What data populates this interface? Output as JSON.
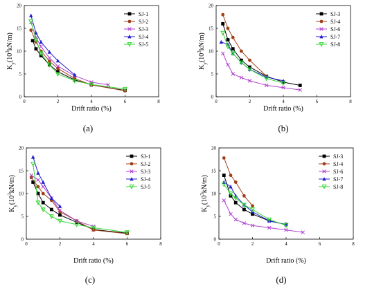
{
  "chart_data": [
    {
      "type": "line",
      "panel_label": "(a)",
      "xlabel": "Drift ratio (%)",
      "ylabel": "K",
      "ylabel_sub": "y",
      "ylabel_rest": "(10",
      "ylabel_sup": "3",
      "ylabel_end": "kN/m)",
      "xlim": [
        0,
        8
      ],
      "ylim": [
        0,
        20
      ],
      "xticks": [
        "0",
        "2",
        "4",
        "6",
        "8"
      ],
      "yticks": [
        "0",
        "5",
        "10",
        "15",
        "20"
      ],
      "legend_position": "top-right",
      "series": [
        {
          "name": "SJ-1",
          "color": "#000000",
          "marker": "square",
          "x": [
            0.5,
            0.7,
            1.0,
            1.5,
            2.0,
            3.0,
            4.0,
            6.0
          ],
          "y": [
            12.3,
            10.5,
            9.0,
            7.0,
            5.5,
            3.7,
            2.6,
            1.4
          ]
        },
        {
          "name": "SJ-2",
          "color": "#a0401a",
          "marker": "circle",
          "x": [
            0.4,
            0.7,
            1.0,
            1.5,
            2.0,
            3.0,
            4.0,
            6.0
          ],
          "y": [
            14.6,
            12.0,
            10.0,
            7.8,
            6.2,
            4.0,
            2.6,
            1.3
          ]
        },
        {
          "name": "SJ-3",
          "color": "#b040d0",
          "marker": "x",
          "x": [
            0.4,
            0.7,
            1.0,
            1.5,
            2.0,
            3.0,
            4.0,
            5.0
          ],
          "y": [
            16.3,
            13.0,
            11.0,
            8.5,
            6.7,
            4.6,
            3.2,
            2.6
          ]
        },
        {
          "name": "SJ-4",
          "color": "#1f1fd0",
          "marker": "triangle",
          "x": [
            0.4,
            0.7,
            1.0,
            1.5,
            2.0,
            3.0
          ],
          "y": [
            17.8,
            14.0,
            12.0,
            9.8,
            7.9,
            4.8
          ]
        },
        {
          "name": "SJ-5",
          "color": "#33d633",
          "marker": "tri-down",
          "x": [
            0.4,
            0.7,
            1.0,
            1.5,
            2.0,
            3.0,
            4.0,
            6.0
          ],
          "y": [
            16.5,
            12.5,
            9.5,
            7.0,
            5.0,
            3.5,
            2.7,
            1.7
          ]
        }
      ]
    },
    {
      "type": "line",
      "panel_label": "(b)",
      "xlabel": "Drift ratio (%)",
      "ylabel": "K",
      "ylabel_sub": "y",
      "ylabel_rest": "(10",
      "ylabel_sup": "3",
      "ylabel_end": "kN/m)",
      "xlim": [
        0,
        8
      ],
      "ylim": [
        0,
        20
      ],
      "xticks": [
        "0",
        "2",
        "4",
        "6",
        "8"
      ],
      "yticks": [
        "0",
        "5",
        "10",
        "15",
        "20"
      ],
      "legend_position": "top-right",
      "series": [
        {
          "name": "SJ-3",
          "color": "#000000",
          "marker": "square",
          "x": [
            0.4,
            0.7,
            1.0,
            1.5,
            2.0,
            3.0,
            4.0,
            5.0
          ],
          "y": [
            16.0,
            12.5,
            10.5,
            8.0,
            6.5,
            4.5,
            3.2,
            2.5
          ]
        },
        {
          "name": "SJ-4",
          "color": "#a0401a",
          "marker": "circle",
          "x": [
            0.4,
            0.7,
            1.0,
            1.5,
            2.0,
            3.0
          ],
          "y": [
            18.0,
            15.0,
            13.0,
            10.0,
            8.0,
            4.5
          ]
        },
        {
          "name": "SJ-6",
          "color": "#b040d0",
          "marker": "x",
          "x": [
            0.4,
            0.7,
            1.0,
            1.5,
            2.0,
            3.0,
            4.0,
            5.0
          ],
          "y": [
            9.5,
            7.0,
            5.0,
            4.2,
            3.5,
            2.5,
            2.0,
            1.5
          ]
        },
        {
          "name": "SJ-7",
          "color": "#1f1fd0",
          "marker": "triangle",
          "x": [
            0.3,
            0.7,
            1.0,
            1.5,
            2.0,
            3.0,
            4.0
          ],
          "y": [
            12.0,
            11.5,
            9.5,
            7.5,
            6.0,
            4.3,
            3.5
          ]
        },
        {
          "name": "SJ-8",
          "color": "#33d633",
          "marker": "tri-down",
          "x": [
            0.4,
            0.7,
            1.0,
            1.5,
            2.0,
            3.0,
            4.0
          ],
          "y": [
            14.0,
            11.0,
            9.5,
            7.5,
            6.0,
            4.0,
            3.0
          ]
        }
      ]
    },
    {
      "type": "line",
      "panel_label": "(c)",
      "xlabel": "Drift ratio (%)",
      "ylabel": "K",
      "ylabel_sub": "y",
      "ylabel_rest": "(10",
      "ylabel_sup": "3",
      "ylabel_end": "kN/m)",
      "xlim": [
        0,
        8
      ],
      "ylim": [
        0,
        20
      ],
      "xticks": [
        "0",
        "2",
        "4",
        "6",
        "8"
      ],
      "yticks": [
        "0",
        "5",
        "10",
        "15",
        "20"
      ],
      "legend_position": "top-right",
      "series": [
        {
          "name": "SJ-1",
          "color": "#000000",
          "marker": "square",
          "x": [
            0.4,
            0.7,
            1.0,
            1.5,
            2.0,
            3.0,
            4.0,
            6.0
          ],
          "y": [
            12.5,
            10.0,
            8.0,
            6.5,
            5.3,
            3.7,
            2.1,
            1.3
          ]
        },
        {
          "name": "SJ-2",
          "color": "#a0401a",
          "marker": "circle",
          "x": [
            0.3,
            0.7,
            1.0,
            1.5,
            2.0,
            3.0,
            4.0,
            6.0
          ],
          "y": [
            13.5,
            11.5,
            10.0,
            8.5,
            6.0,
            4.0,
            2.0,
            1.2
          ]
        },
        {
          "name": "SJ-3",
          "color": "#b040d0",
          "marker": "x",
          "x": [
            0.3,
            0.7,
            1.0,
            1.5,
            2.0,
            3.0,
            4.0
          ],
          "y": [
            14.0,
            13.0,
            11.5,
            9.0,
            6.3,
            4.0,
            2.8
          ]
        },
        {
          "name": "SJ-4",
          "color": "#1f1fd0",
          "marker": "triangle",
          "x": [
            0.4,
            0.7,
            1.0,
            1.5,
            2.0
          ],
          "y": [
            18.0,
            14.5,
            12.5,
            9.0,
            7.2
          ]
        },
        {
          "name": "SJ-5",
          "color": "#33d633",
          "marker": "tri-down",
          "x": [
            0.4,
            0.7,
            1.0,
            1.5,
            2.0,
            3.0,
            4.0,
            6.0
          ],
          "y": [
            16.5,
            8.0,
            6.5,
            5.0,
            4.0,
            3.2,
            2.5,
            1.5
          ]
        }
      ]
    },
    {
      "type": "line",
      "panel_label": "(d)",
      "xlabel": "Drift ratio (%)",
      "ylabel": "K",
      "ylabel_sub": "y",
      "ylabel_rest": "(10",
      "ylabel_sup": "3",
      "ylabel_end": "kN/m)",
      "xlim": [
        0,
        8
      ],
      "ylim": [
        0,
        20
      ],
      "xticks": [
        "0",
        "2",
        "4",
        "6",
        "8"
      ],
      "yticks": [
        "0",
        "5",
        "10",
        "15",
        "20"
      ],
      "legend_position": "top-right",
      "series": [
        {
          "name": "SJ-3",
          "color": "#000000",
          "marker": "square",
          "x": [
            0.3,
            0.7,
            1.0,
            1.5,
            2.0,
            3.0,
            4.0
          ],
          "y": [
            14.0,
            9.5,
            8.0,
            6.5,
            5.5,
            4.0,
            3.2
          ]
        },
        {
          "name": "SJ-4",
          "color": "#a0401a",
          "marker": "circle",
          "x": [
            0.3,
            0.7,
            1.0,
            1.5,
            2.0
          ],
          "y": [
            17.8,
            14.0,
            12.5,
            9.5,
            7.3
          ]
        },
        {
          "name": "SJ-6",
          "color": "#b040d0",
          "marker": "x",
          "x": [
            0.3,
            0.7,
            1.0,
            1.5,
            2.0,
            3.0,
            4.0,
            5.0
          ],
          "y": [
            8.5,
            5.5,
            4.3,
            3.5,
            3.0,
            2.5,
            2.0,
            1.5
          ]
        },
        {
          "name": "SJ-7",
          "color": "#1f1fd0",
          "marker": "triangle",
          "x": [
            0.3,
            0.7,
            1.0,
            1.5,
            2.0,
            3.0,
            4.0
          ],
          "y": [
            12.5,
            11.5,
            9.5,
            7.5,
            6.0,
            4.0,
            3.2
          ]
        },
        {
          "name": "SJ-8",
          "color": "#33d633",
          "marker": "tri-down",
          "x": [
            0.3,
            0.7,
            1.0,
            1.5,
            2.0,
            3.0,
            4.0
          ],
          "y": [
            12.0,
            10.0,
            9.0,
            7.5,
            6.5,
            4.3,
            3.0
          ]
        }
      ]
    }
  ]
}
